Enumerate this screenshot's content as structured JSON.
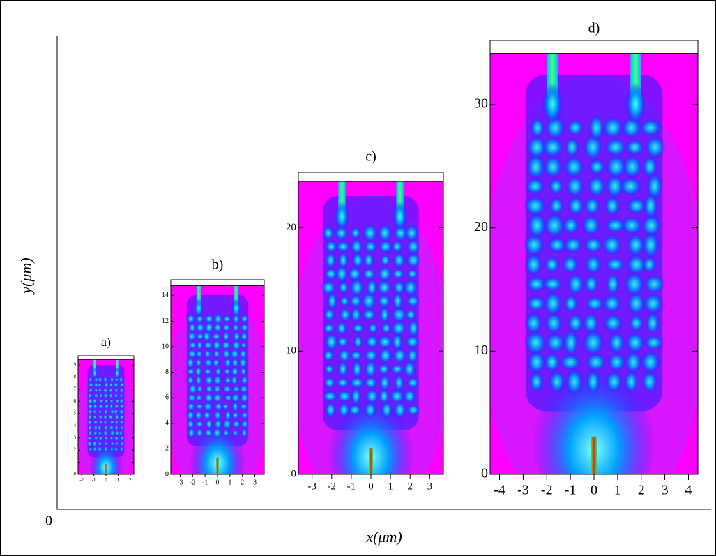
{
  "figure": {
    "y_label": "y(μm)",
    "x_label": "x(μm)",
    "origin": 0
  },
  "chart_data": [
    {
      "type": "heatmap",
      "title": "a)",
      "xlim": [
        -2.3,
        2.3
      ],
      "ylim": [
        0,
        9.75
      ],
      "xticks": [
        -2,
        -1,
        0,
        1,
        2
      ],
      "yticks": [
        0,
        1,
        2,
        3,
        4,
        5,
        6,
        7,
        8,
        9
      ]
    },
    {
      "type": "heatmap",
      "title": "b)",
      "xlim": [
        -3.75,
        3.75
      ],
      "ylim": [
        0,
        15.25
      ],
      "xticks": [
        -3,
        -2,
        -1,
        0,
        1,
        2,
        3
      ],
      "yticks": [
        0,
        2,
        4,
        6,
        8,
        10,
        12,
        14
      ]
    },
    {
      "type": "heatmap",
      "title": "c)",
      "xlim": [
        -3.7,
        3.7
      ],
      "ylim": [
        0,
        24.5
      ],
      "xticks": [
        -3,
        -2,
        -1,
        0,
        1,
        2,
        3
      ],
      "yticks": [
        0,
        10,
        20
      ]
    },
    {
      "type": "heatmap",
      "title": "d)",
      "xlim": [
        -4.4,
        4.4
      ],
      "ylim": [
        0,
        35.2
      ],
      "xticks": [
        -4,
        -3,
        -2,
        -1,
        0,
        1,
        2,
        3,
        4
      ],
      "yticks": [
        0,
        10,
        20,
        30
      ]
    }
  ]
}
